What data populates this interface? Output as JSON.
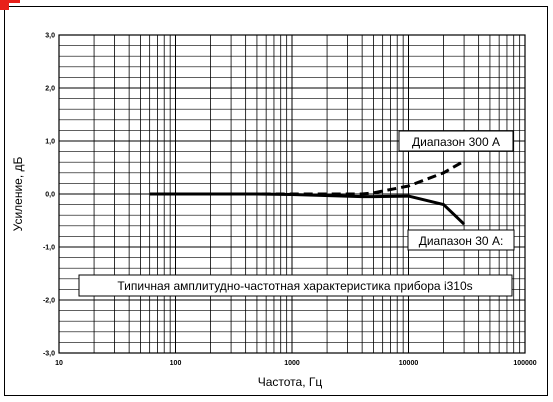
{
  "chart_data": {
    "type": "line",
    "xscale": "log",
    "xlim": [
      10,
      100000
    ],
    "ylim": [
      -3.0,
      3.0
    ],
    "xlabel": "Частота, Гц",
    "ylabel": "Усиление, дБ",
    "xticks": [
      "10",
      "100",
      "1000",
      "10000",
      "100000"
    ],
    "yticks": [
      "3,0",
      "2,0",
      "1,0",
      "0,0",
      "-1,0",
      "-2,0",
      "-3,0"
    ],
    "grid": true,
    "series": [
      {
        "name": "Диапазон 300 А",
        "style": "dashed",
        "x": [
          60,
          100,
          500,
          1000,
          4000,
          5000,
          10000,
          20000,
          30000
        ],
        "y": [
          0.0,
          0.0,
          0.0,
          0.0,
          0.0,
          0.02,
          0.15,
          0.4,
          0.62
        ]
      },
      {
        "name": "Диапазон 30 А:",
        "style": "solid",
        "x": [
          60,
          100,
          500,
          1000,
          4000,
          5000,
          10000,
          20000,
          30000
        ],
        "y": [
          0.0,
          0.0,
          0.0,
          -0.01,
          -0.05,
          -0.05,
          -0.04,
          -0.2,
          -0.57
        ]
      }
    ],
    "annotations": [
      "Типичная амплитудно-частотная характеристика прибора i310s"
    ]
  }
}
